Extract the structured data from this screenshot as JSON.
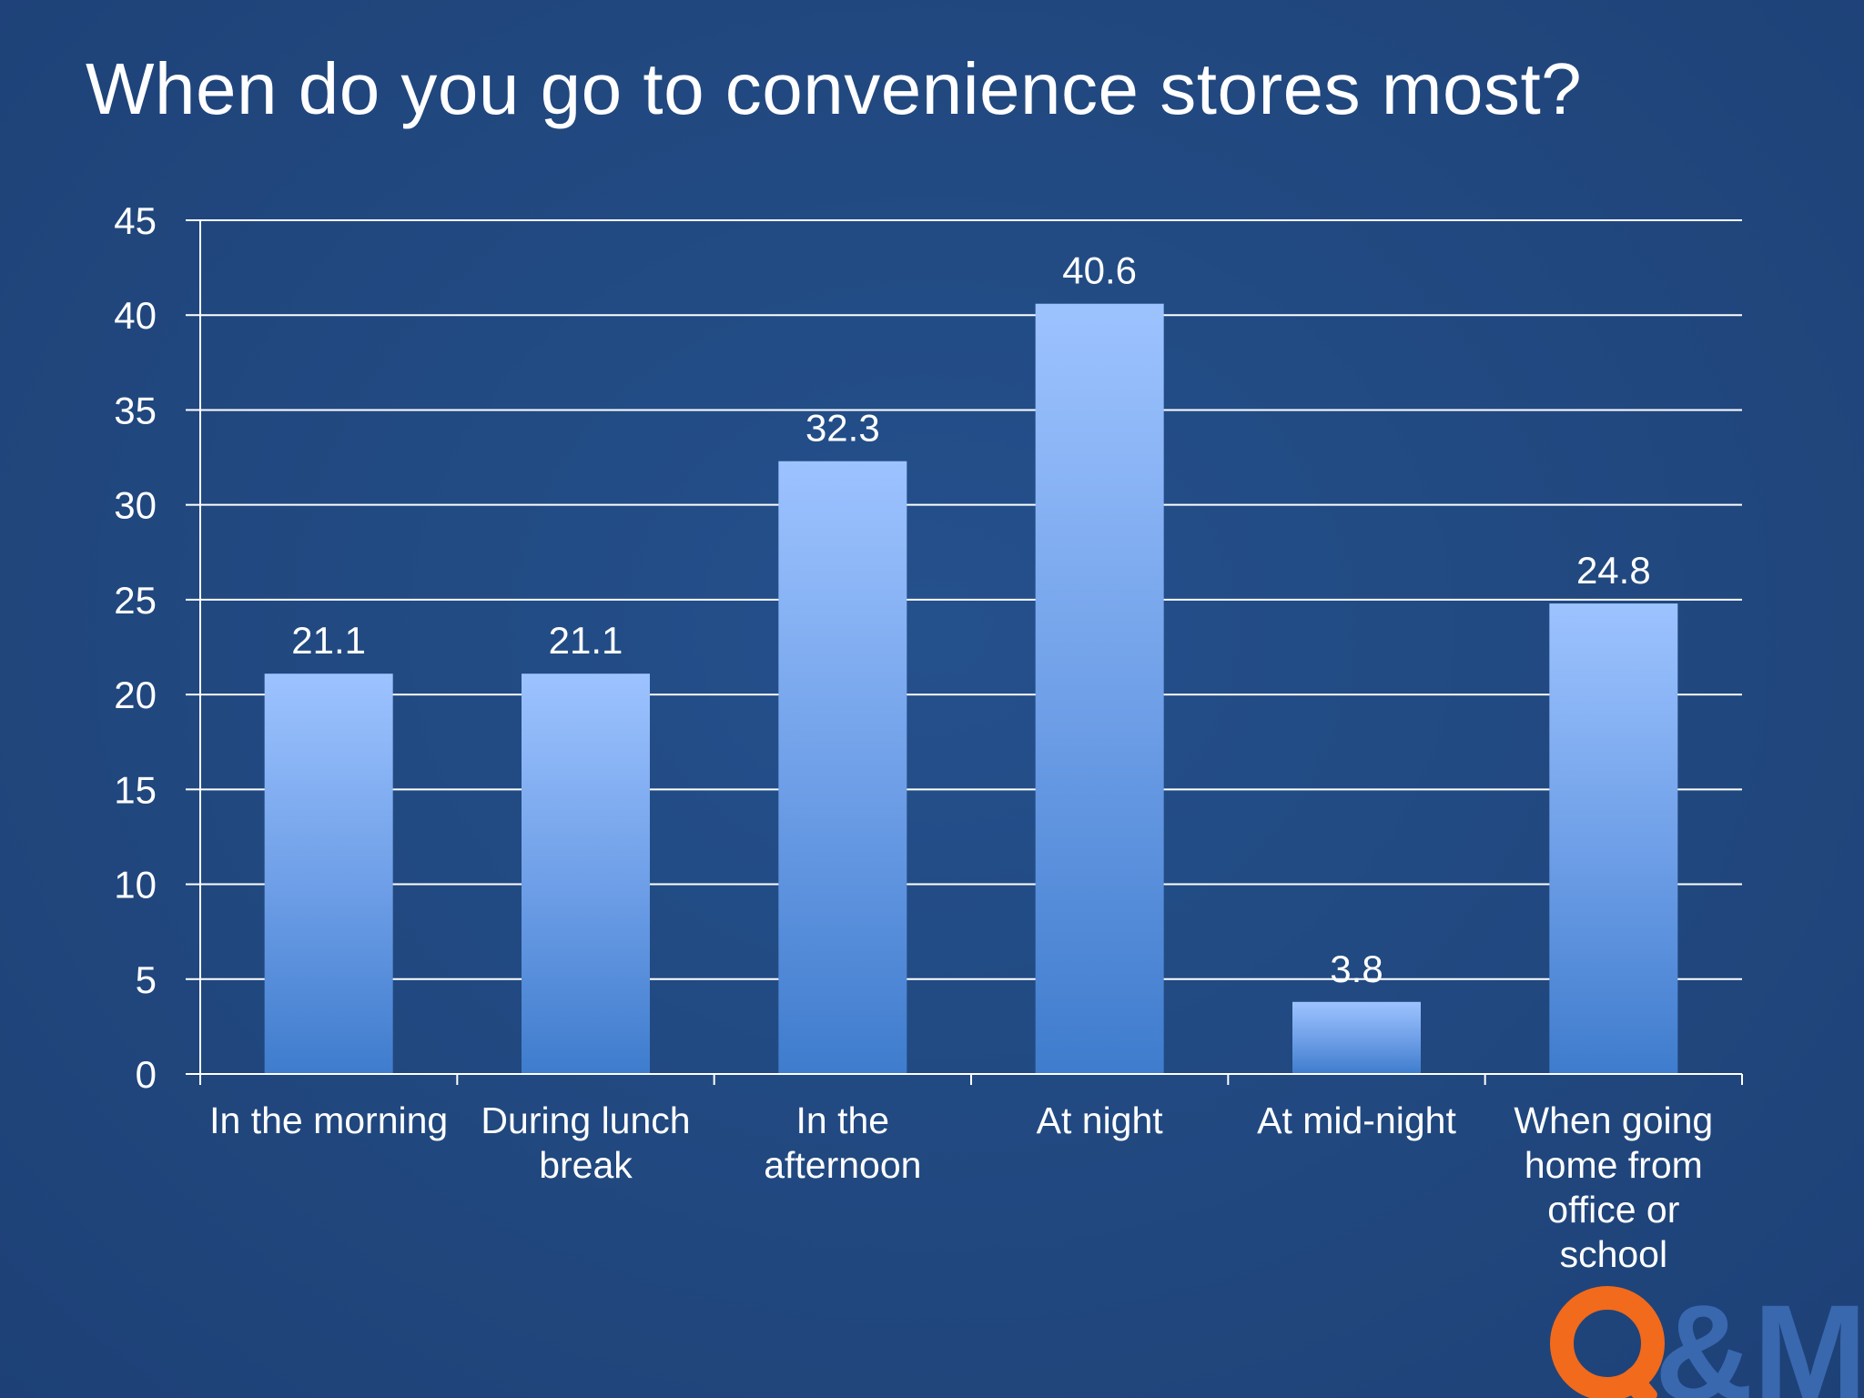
{
  "chart_data": {
    "type": "bar",
    "title": "When do you go to convenience stores most?",
    "categories": [
      "In the morning",
      "During lunch break",
      "In the afternoon",
      "At night",
      "At mid-night",
      "When going home from office or school"
    ],
    "category_lines": [
      [
        "In the morning"
      ],
      [
        "During lunch",
        "break"
      ],
      [
        "In the",
        "afternoon"
      ],
      [
        "At night"
      ],
      [
        "At mid-night"
      ],
      [
        "When going",
        "home from",
        "office or",
        "school"
      ]
    ],
    "values": [
      21.1,
      21.1,
      32.3,
      40.6,
      3.8,
      24.8
    ],
    "data_labels": [
      "21.1",
      "21.1",
      "32.3",
      "40.6",
      "3.8",
      "24.8"
    ],
    "ylim": [
      0,
      45
    ],
    "yticks": [
      0,
      5,
      10,
      15,
      20,
      25,
      30,
      35,
      40,
      45
    ],
    "xlabel": "",
    "ylabel": "",
    "grid": true,
    "legend": "none"
  },
  "colors": {
    "background": "#21487f",
    "bar_top": "#9dc3ff",
    "bar_bottom": "#3f7ccd",
    "gridline": "#ffffff",
    "text": "#ffffff",
    "logo_orange": "#f26a1b",
    "logo_blue": "#3d6db5"
  },
  "logo": {
    "text": "Q&Me",
    "icon": "q-and-me-logo"
  }
}
